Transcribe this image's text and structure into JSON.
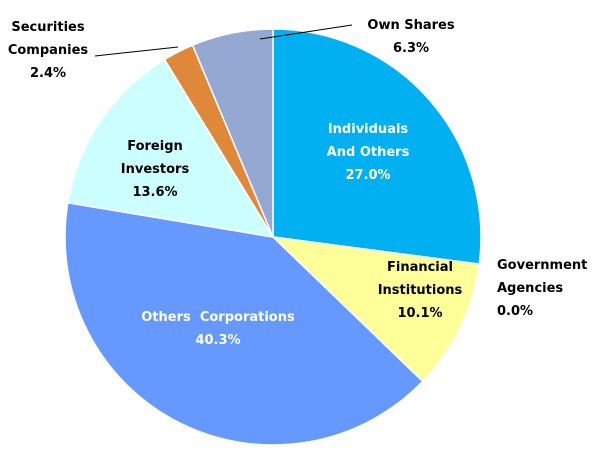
{
  "chart_data": {
    "type": "pie",
    "slices": [
      {
        "name": "Individuals And Others",
        "label_lines": [
          "Individuals",
          "And Others"
        ],
        "value": 27.0,
        "value_label": "27.0%",
        "color": "#00b0f0",
        "label_color": "#ffffff"
      },
      {
        "name": "Government Agencies",
        "label_lines": [
          "Government",
          "Agencies"
        ],
        "value": 0.0,
        "value_label": "0.0%",
        "color": "#ffff99",
        "label_color": "#000000"
      },
      {
        "name": "Financial Institutions",
        "label_lines": [
          "Financial",
          "Institutions"
        ],
        "value": 10.1,
        "value_label": "10.1%",
        "color": "#ffff99",
        "label_color": "#000000"
      },
      {
        "name": "Others Corporations",
        "label_lines": [
          "Others  Corporations"
        ],
        "value": 40.3,
        "value_label": "40.3%",
        "color": "#6699ff",
        "label_color": "#ffffff"
      },
      {
        "name": "Foreign Investors",
        "label_lines": [
          "Foreign",
          "Investors"
        ],
        "value": 13.6,
        "value_label": "13.6%",
        "color": "#ccffff",
        "label_color": "#000000"
      },
      {
        "name": "Securities Companies",
        "label_lines": [
          "Securities",
          "Companies"
        ],
        "value": 2.4,
        "value_label": "2.4%",
        "color": "#e0883a",
        "label_color": "#000000"
      },
      {
        "name": "Own Shares",
        "label_lines": [
          "Own Shares"
        ],
        "value": 6.3,
        "value_label": "6.3%",
        "color": "#95a8d2",
        "label_color": "#000000"
      }
    ],
    "start_direction": "12 o'clock",
    "order": "clockwise"
  }
}
